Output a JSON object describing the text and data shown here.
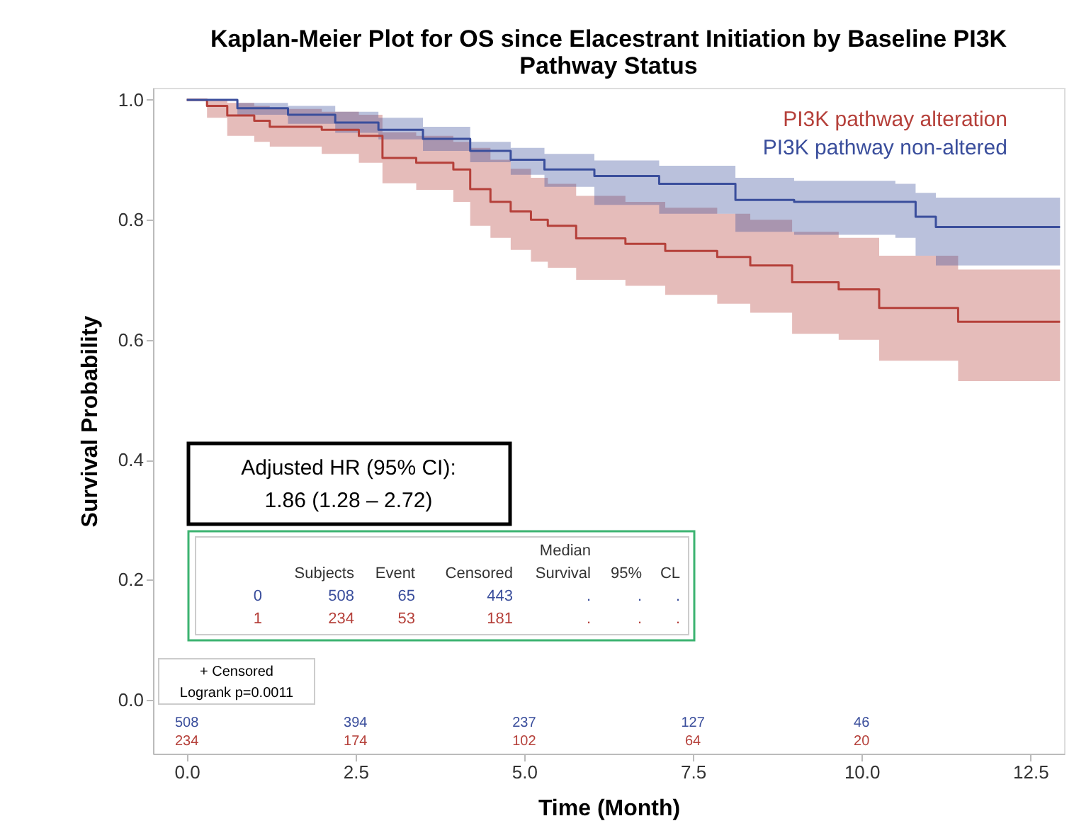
{
  "chart_data": {
    "type": "step",
    "title": "Kaplan-Meier Plot for OS since Elacestrant Initiation by Baseline PI3K Pathway Status",
    "xlabel": "Time (Month)",
    "ylabel": "Survival Probability",
    "xlim": [
      -0.5,
      13
    ],
    "xticks": [
      {
        "value": 0,
        "label": "0.0"
      },
      2.5,
      {
        "value": 5,
        "label": "5.0"
      },
      7.5,
      {
        "value": 10,
        "label": "10.0"
      },
      12.5
    ],
    "ylim": [
      -0.09,
      1.02
    ],
    "yticks": [
      {
        "value": 0,
        "label": "0.0"
      },
      0.2,
      0.4,
      0.6,
      0.8,
      {
        "value": 1,
        "label": "1.0"
      }
    ],
    "grid": false,
    "legend": "top right",
    "series": [
      {
        "name": "PI3K pathway alteration",
        "color": "#b5403a",
        "x": [
          0,
          0.3,
          0.6,
          1.0,
          1.23,
          2.0,
          2.55,
          2.9,
          3.4,
          3.95,
          4.2,
          4.5,
          4.8,
          5.1,
          5.35,
          5.77,
          6.5,
          7.09,
          7.86,
          8.35,
          8.97,
          9.66,
          10.26,
          11.43,
          12.94
        ],
        "values": [
          1.0,
          0.99,
          0.974,
          0.965,
          0.955,
          0.95,
          0.94,
          0.903,
          0.895,
          0.884,
          0.851,
          0.83,
          0.814,
          0.8,
          0.79,
          0.769,
          0.76,
          0.748,
          0.738,
          0.724,
          0.696,
          0.684,
          0.653,
          0.63,
          0.63
        ],
        "lower": [
          1.0,
          0.97,
          0.94,
          0.93,
          0.922,
          0.91,
          0.895,
          0.861,
          0.85,
          0.83,
          0.79,
          0.77,
          0.75,
          0.73,
          0.72,
          0.7,
          0.69,
          0.675,
          0.66,
          0.645,
          0.61,
          0.6,
          0.565,
          0.531,
          0.531
        ],
        "upper": [
          1.0,
          1.0,
          0.995,
          0.99,
          0.985,
          0.98,
          0.975,
          0.946,
          0.94,
          0.93,
          0.92,
          0.9,
          0.885,
          0.87,
          0.86,
          0.84,
          0.83,
          0.82,
          0.81,
          0.8,
          0.78,
          0.77,
          0.74,
          0.717,
          0.717
        ]
      },
      {
        "name": "PI3K pathway non-altered",
        "color": "#3a4e9c",
        "x": [
          0,
          0.75,
          1.5,
          2.2,
          2.84,
          3.5,
          4.2,
          4.8,
          5.3,
          6.04,
          7.0,
          8.13,
          9.0,
          10.5,
          10.8,
          11.1,
          12.94
        ],
        "values": [
          1.0,
          0.986,
          0.975,
          0.962,
          0.95,
          0.935,
          0.915,
          0.9,
          0.884,
          0.873,
          0.86,
          0.833,
          0.83,
          0.83,
          0.805,
          0.788,
          0.788
        ],
        "lower": [
          1.0,
          0.975,
          0.96,
          0.945,
          0.934,
          0.915,
          0.896,
          0.875,
          0.855,
          0.825,
          0.81,
          0.78,
          0.775,
          0.77,
          0.74,
          0.724,
          0.724
        ],
        "upper": [
          1.0,
          0.995,
          0.99,
          0.98,
          0.97,
          0.955,
          0.93,
          0.92,
          0.91,
          0.899,
          0.89,
          0.87,
          0.865,
          0.86,
          0.845,
          0.837,
          0.837
        ]
      }
    ],
    "annotations": [
      "Adjusted HR (95% CI):",
      "1.86 (1.28 – 2.72)",
      "+ Censored",
      "Logrank p=0.0011",
      "Median",
      "Subjects",
      "Event",
      "Censored",
      "Survival",
      "95%",
      "CL",
      "0",
      "508",
      "65",
      "443",
      ".",
      ".",
      ".",
      "1",
      "234",
      "53",
      "181",
      ".",
      ".",
      ".",
      "508",
      "394",
      "237",
      "127",
      "46",
      "234",
      "174",
      "102",
      "64",
      "20"
    ]
  }
}
